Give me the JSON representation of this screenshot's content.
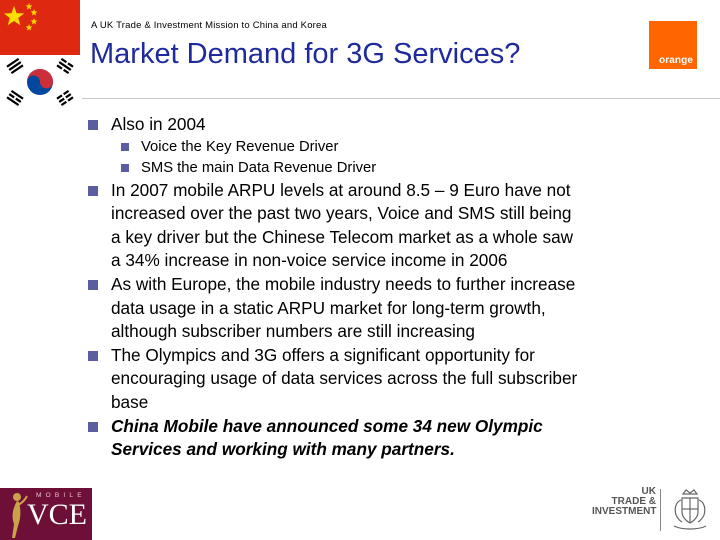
{
  "header": {
    "supertitle": "A UK Trade & Investment Mission to China and Korea",
    "title": "Market Demand for 3G Services?"
  },
  "logos": {
    "orange": "orange",
    "orange_color": "#ff6600",
    "vce_mobile": "MOBILE",
    "vce": "VCE",
    "ukti_lines": [
      "UK",
      "TRADE &",
      "INVESTMENT"
    ]
  },
  "colors": {
    "title": "#1f2a9c",
    "bullet": "#5a5e9e",
    "china_red": "#de2910",
    "vce_maroon": "#6e0f38"
  },
  "bullets": [
    {
      "lines": [
        "Also in 2004"
      ],
      "subs": [
        "Voice the Key Revenue Driver",
        "SMS the main Data Revenue Driver"
      ]
    },
    {
      "lines": [
        "In 2007 mobile ARPU levels at around 8.5 – 9 Euro have not",
        "increased over the past two years, Voice and SMS still being",
        "a key driver but the Chinese Telecom market as a whole saw",
        "a 34% increase in non-voice service income in 2006"
      ]
    },
    {
      "lines": [
        "As with Europe, the mobile industry needs to further increase",
        "data usage in a static ARPU market for long-term growth,",
        "although subscriber numbers are still increasing"
      ]
    },
    {
      "lines": [
        "The Olympics and 3G offers a significant opportunity for",
        "encouraging usage of data services across the full subscriber",
        "base"
      ]
    },
    {
      "lines": [
        "China Mobile have announced some 34 new Olympic",
        "Services and working with many partners."
      ]
    }
  ]
}
